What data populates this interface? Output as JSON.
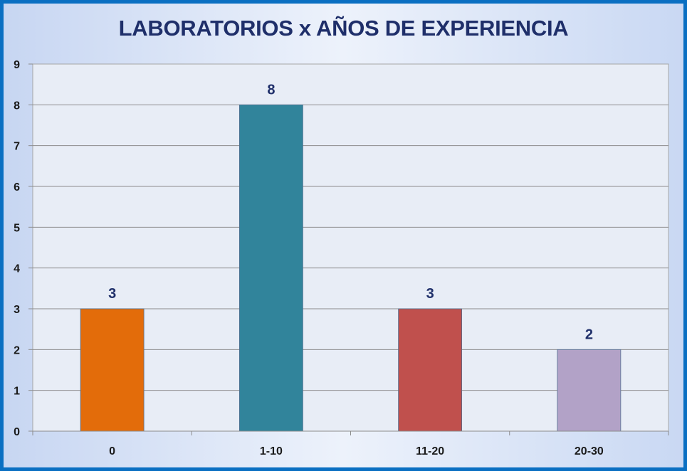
{
  "chart_data": {
    "type": "bar",
    "title": "LABORATORIOS x AÑOS DE EXPERIENCIA",
    "xlabel": "",
    "ylabel": "",
    "categories": [
      "0",
      "1-10",
      "11-20",
      "20-30"
    ],
    "values": [
      3,
      8,
      3,
      2
    ],
    "colors": [
      "#e36c0a",
      "#31849b",
      "#c0504d",
      "#b2a2c7"
    ],
    "ylim": [
      0,
      9
    ],
    "yticks": [
      "0",
      "1",
      "2",
      "3",
      "4",
      "5",
      "6",
      "7",
      "8",
      "9"
    ],
    "grid": true,
    "legend": "none",
    "data_labels": [
      "3",
      "8",
      "3",
      "2"
    ]
  }
}
